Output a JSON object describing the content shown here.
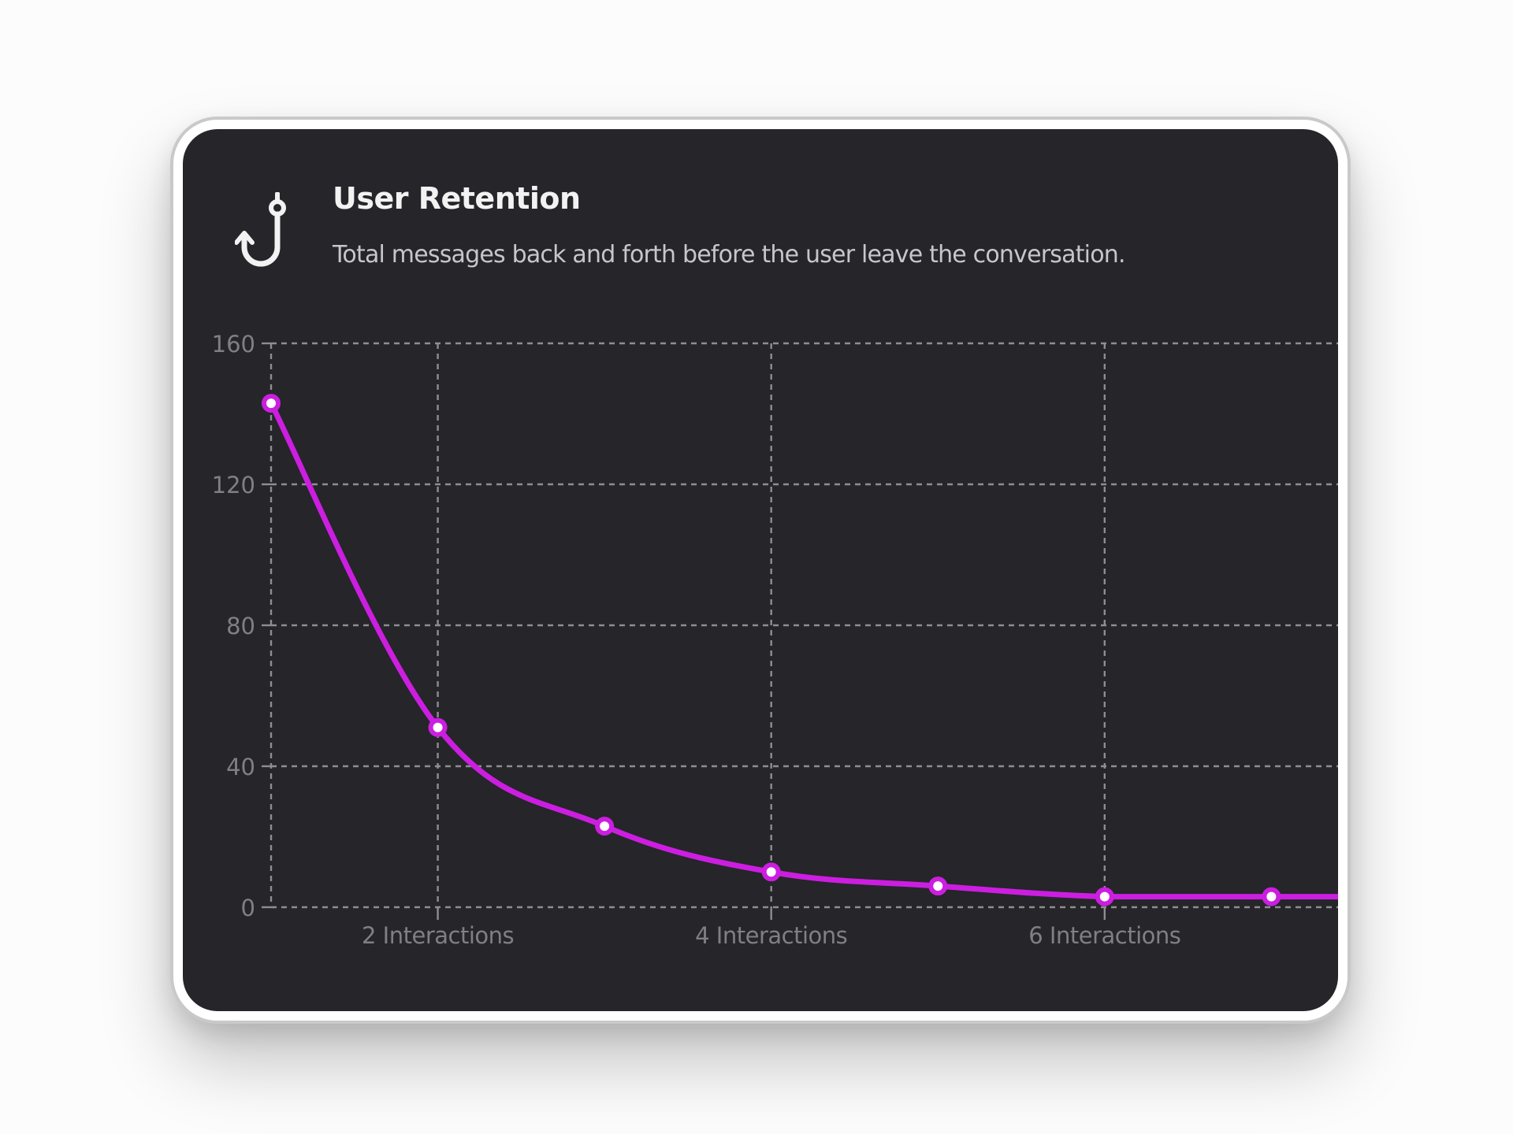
{
  "header": {
    "icon": "fish-hook-icon",
    "title": "User Retention",
    "subtitle": "Total messages back and forth before the user leave the conversation."
  },
  "colors": {
    "background": "#25252a",
    "line": "#cc1ee0",
    "grid": "#8e8e92",
    "axis_text": "#808084"
  },
  "chart_data": {
    "type": "line",
    "title": "User Retention",
    "subtitle": "Total messages back and forth before the user leave the conversation.",
    "x": [
      1,
      2,
      3,
      4,
      5,
      6,
      7
    ],
    "series": [
      {
        "values": [
          143,
          51,
          23,
          10,
          6,
          3,
          3
        ]
      }
    ],
    "x_ticks": [
      {
        "x": 2,
        "label": "2 Interactions"
      },
      {
        "x": 4,
        "label": "4 Interactions"
      },
      {
        "x": 6,
        "label": "6 Interactions"
      }
    ],
    "y_ticks": [
      0,
      40,
      80,
      120,
      160
    ],
    "xlim": [
      1,
      7.4
    ],
    "ylim": [
      0,
      160
    ],
    "grid": true,
    "grid_style": "dashed",
    "curve": "smooth",
    "legend": "none"
  }
}
